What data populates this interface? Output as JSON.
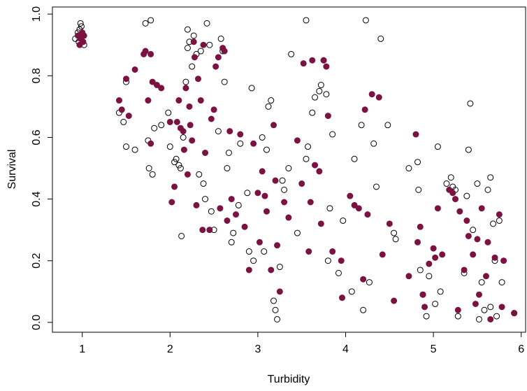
{
  "chart_data": {
    "type": "scatter",
    "xlabel": "Turbidity",
    "ylabel": "Survival",
    "xlim": [
      0.66,
      6.05
    ],
    "ylim": [
      -0.032,
      1.023
    ],
    "xticks": [
      1,
      2,
      3,
      4,
      5,
      6
    ],
    "yticks": [
      {
        "value": 0,
        "label": "0.0"
      },
      0.2,
      0.4,
      0.6,
      0.8,
      {
        "value": 1,
        "label": "1.0"
      }
    ],
    "series": [
      {
        "color": "#000000",
        "filled": false,
        "x": [
          0.92,
          0.95,
          0.97,
          0.98,
          1.0,
          1.02,
          0.96,
          0.99,
          1.42,
          1.47,
          1.5,
          1.5,
          1.6,
          1.72,
          1.78,
          1.75,
          1.76,
          1.8,
          1.82,
          1.9,
          1.98,
          2.0,
          2.05,
          2.07,
          2.1,
          2.12,
          2.13,
          2.15,
          2.18,
          2.2,
          2.2,
          2.22,
          2.25,
          2.27,
          2.3,
          2.35,
          2.33,
          2.38,
          2.4,
          2.42,
          2.45,
          2.47,
          2.5,
          2.55,
          2.58,
          2.6,
          2.62,
          2.65,
          2.67,
          2.7,
          2.72,
          2.78,
          2.8,
          2.88,
          2.9,
          2.93,
          2.95,
          3.05,
          3.07,
          3.1,
          3.12,
          3.15,
          3.18,
          3.2,
          3.22,
          3.25,
          3.28,
          3.3,
          3.35,
          3.38,
          3.45,
          3.55,
          3.55,
          3.57,
          3.62,
          3.65,
          3.7,
          3.72,
          3.75,
          3.78,
          3.8,
          3.82,
          3.85,
          3.92,
          3.97,
          4.07,
          4.1,
          4.18,
          4.2,
          4.23,
          4.27,
          4.32,
          4.35,
          4.4,
          4.48,
          4.55,
          4.57,
          4.72,
          4.82,
          4.83,
          4.85,
          4.88,
          4.92,
          4.95,
          5.02,
          5.05,
          5.08,
          5.15,
          5.2,
          5.22,
          5.25,
          5.28,
          5.35,
          5.38,
          5.4,
          5.42,
          5.45,
          5.5,
          5.52,
          5.55,
          5.58,
          5.62,
          5.65,
          5.68,
          5.7,
          5.75,
          5.78,
          5.92,
          5.65,
          5.72
        ],
        "values": [
          0.92,
          0.94,
          0.95,
          0.97,
          0.93,
          0.9,
          0.91,
          0.96,
          0.68,
          0.65,
          0.57,
          0.78,
          0.56,
          0.97,
          0.98,
          0.59,
          0.5,
          0.48,
          0.63,
          0.64,
          0.68,
          0.57,
          0.52,
          0.53,
          0.51,
          0.5,
          0.28,
          0.6,
          0.78,
          0.89,
          0.95,
          0.91,
          0.83,
          0.93,
          0.87,
          0.88,
          0.48,
          0.45,
          0.4,
          0.97,
          0.9,
          0.36,
          0.3,
          0.62,
          0.92,
          0.88,
          0.78,
          0.5,
          0.55,
          0.26,
          0.29,
          0.38,
          0.58,
          0.42,
          0.23,
          0.76,
          0.2,
          0.6,
          0.23,
          0.56,
          0.7,
          0.72,
          0.07,
          0.04,
          0.01,
          0.18,
          0.46,
          0.43,
          0.5,
          0.87,
          0.29,
          0.98,
          0.53,
          0.57,
          0.68,
          0.73,
          0.75,
          0.77,
          0.85,
          0.74,
          0.2,
          0.37,
          0.61,
          0.16,
          0.33,
          0.1,
          0.53,
          0.64,
          0.04,
          0.98,
          0.13,
          0.58,
          0.44,
          0.92,
          0.64,
          0.29,
          0.27,
          0.5,
          0.52,
          0.43,
          0.17,
          0.09,
          0.02,
          0.15,
          0.06,
          0.57,
          0.1,
          0.45,
          0.47,
          0.44,
          0.43,
          0.02,
          0.16,
          0.41,
          0.56,
          0.71,
          0.3,
          0.45,
          0.01,
          0.13,
          0.04,
          0.43,
          0.47,
          0.32,
          0.2,
          0.33,
          0.13,
          0.03,
          0.05,
          0.02
        ]
      },
      {
        "color": "#7b1241",
        "filled": true,
        "x": [
          0.95,
          0.98,
          1.0,
          1.02,
          0.97,
          1.01,
          1.42,
          1.45,
          1.5,
          1.53,
          1.6,
          1.7,
          1.72,
          1.78,
          1.75,
          1.78,
          1.8,
          1.85,
          1.9,
          2.0,
          2.02,
          2.05,
          2.08,
          2.1,
          2.12,
          2.15,
          2.16,
          2.18,
          2.2,
          2.22,
          2.23,
          2.25,
          2.27,
          2.28,
          2.3,
          2.32,
          2.35,
          2.37,
          2.38,
          2.4,
          2.45,
          2.47,
          2.5,
          2.52,
          2.55,
          2.57,
          2.6,
          2.62,
          2.65,
          2.68,
          2.7,
          2.75,
          2.8,
          2.85,
          2.9,
          2.95,
          3.0,
          3.02,
          3.05,
          3.08,
          3.1,
          3.15,
          3.18,
          3.2,
          3.22,
          3.25,
          3.3,
          3.35,
          3.45,
          3.5,
          3.52,
          3.58,
          3.6,
          3.62,
          3.65,
          3.7,
          3.72,
          3.75,
          3.78,
          3.8,
          3.85,
          3.95,
          3.96,
          4.05,
          4.1,
          4.15,
          4.2,
          4.22,
          4.25,
          4.3,
          4.38,
          4.42,
          4.5,
          4.55,
          4.72,
          4.8,
          4.82,
          4.85,
          4.88,
          4.9,
          4.95,
          5.0,
          5.02,
          5.05,
          5.1,
          5.18,
          5.22,
          5.25,
          5.28,
          5.3,
          5.35,
          5.38,
          5.4,
          5.45,
          5.48,
          5.5,
          5.52,
          5.55,
          5.6,
          5.62,
          5.65,
          5.7,
          5.75,
          5.78,
          5.8,
          5.92
        ],
        "values": [
          0.93,
          0.92,
          0.94,
          0.93,
          0.9,
          0.91,
          0.72,
          0.69,
          0.79,
          0.67,
          0.82,
          0.87,
          0.88,
          0.87,
          0.72,
          0.58,
          0.78,
          0.77,
          0.76,
          0.65,
          0.39,
          0.44,
          0.65,
          0.72,
          0.63,
          0.62,
          0.56,
          0.76,
          0.48,
          0.7,
          0.64,
          0.59,
          0.91,
          0.86,
          0.38,
          0.79,
          0.72,
          0.3,
          0.9,
          0.55,
          0.3,
          0.66,
          0.69,
          0.83,
          0.86,
          0.37,
          0.89,
          0.88,
          0.33,
          0.62,
          0.4,
          0.35,
          0.61,
          0.31,
          0.17,
          0.58,
          0.42,
          0.26,
          0.49,
          0.41,
          0.36,
          0.17,
          0.64,
          0.46,
          0.25,
          0.1,
          0.39,
          0.34,
          0.59,
          0.45,
          0.84,
          0.23,
          0.39,
          0.85,
          0.51,
          0.49,
          0.32,
          0.85,
          0.83,
          0.67,
          0.23,
          0.2,
          0.08,
          0.41,
          0.38,
          0.37,
          0.14,
          0.69,
          0.35,
          0.74,
          0.73,
          0.22,
          0.32,
          0.07,
          0.15,
          0.61,
          0.26,
          0.31,
          0.09,
          0.05,
          0.19,
          0.24,
          0.21,
          0.37,
          0.22,
          0.43,
          0.42,
          0.4,
          0.04,
          0.36,
          0.17,
          0.33,
          0.28,
          0.22,
          0.06,
          0.27,
          0.09,
          0.37,
          0.15,
          0.26,
          0.01,
          0.21,
          0.35,
          0.05,
          0.2,
          0.03
        ]
      }
    ]
  }
}
